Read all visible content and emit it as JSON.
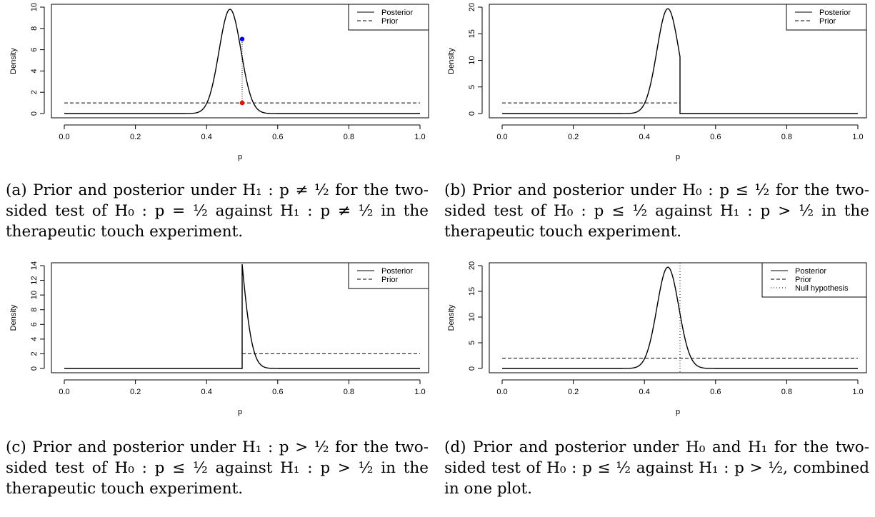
{
  "chart_data": [
    {
      "type": "line",
      "xlabel": "p",
      "ylabel": "Density",
      "xlim": [
        0,
        1
      ],
      "ylim": [
        0,
        10
      ],
      "xticks": [
        "0.0",
        "0.2",
        "0.4",
        "0.6",
        "0.8",
        "1.0"
      ],
      "yticks": [
        "0",
        "2",
        "4",
        "6",
        "8",
        "10"
      ],
      "legend": {
        "placement": "top-right",
        "entries": [
          "Posterior",
          "Prior"
        ]
      },
      "series": [
        {
          "name": "Posterior",
          "style": "solid",
          "kind": "beta",
          "alpha": 124,
          "beta": 142,
          "x_range": [
            0,
            1
          ],
          "peak": 9.8,
          "peak_x": 0.466
        },
        {
          "name": "Prior",
          "style": "dashed",
          "kind": "constant",
          "value": 1,
          "x_range": [
            0,
            1
          ]
        }
      ],
      "markers": [
        {
          "x": 0.5,
          "y": 7.0,
          "color": "#0000ff"
        },
        {
          "x": 0.5,
          "y": 1.0,
          "color": "#ff0000"
        }
      ],
      "vline": {
        "x": 0.5,
        "y_range": [
          1.0,
          7.0
        ],
        "style": "dotted"
      },
      "caption": "(a) Prior and posterior under H₁ : p ≠ ½ for the two-sided test of H₀ : p = ½ against H₁ : p ≠ ½ in the therapeutic touch experiment."
    },
    {
      "type": "line",
      "xlabel": "p",
      "ylabel": "Density",
      "xlim": [
        0,
        1
      ],
      "ylim": [
        0,
        20
      ],
      "xticks": [
        "0.0",
        "0.2",
        "0.4",
        "0.6",
        "0.8",
        "1.0"
      ],
      "yticks": [
        "0",
        "5",
        "10",
        "15",
        "20"
      ],
      "legend": {
        "placement": "top-right",
        "entries": [
          "Posterior",
          "Prior"
        ]
      },
      "series": [
        {
          "name": "Posterior",
          "style": "solid",
          "kind": "beta",
          "alpha": 124,
          "beta": 142,
          "x_range": [
            0,
            0.5
          ],
          "peak": 19.7,
          "peak_x": 0.466,
          "zero_after": true
        },
        {
          "name": "Prior",
          "style": "dashed",
          "kind": "constant",
          "value": 2,
          "x_range": [
            0,
            0.5
          ]
        }
      ],
      "caption": "(b) Prior and posterior under H₀ : p ≤ ½ for the two-sided test of H₀ : p ≤ ½ against H₁ : p > ½ in the therapeutic touch experiment."
    },
    {
      "type": "line",
      "xlabel": "p",
      "ylabel": "Density",
      "xlim": [
        0,
        1
      ],
      "ylim": [
        0,
        14
      ],
      "xticks": [
        "0.0",
        "0.2",
        "0.4",
        "0.6",
        "0.8",
        "1.0"
      ],
      "yticks": [
        "0",
        "2",
        "4",
        "6",
        "8",
        "10",
        "12",
        "14"
      ],
      "legend": {
        "placement": "top-right",
        "entries": [
          "Posterior",
          "Prior"
        ]
      },
      "series": [
        {
          "name": "Posterior",
          "style": "solid",
          "kind": "beta",
          "alpha": 124,
          "beta": 142,
          "x_range": [
            0.5,
            1
          ],
          "peak": 14.2,
          "peak_x": 0.5,
          "zero_before": true
        },
        {
          "name": "Prior",
          "style": "dashed",
          "kind": "constant",
          "value": 2,
          "x_range": [
            0.5,
            1
          ]
        }
      ],
      "caption": "(c) Prior and posterior under H₁ : p > ½ for the two-sided test of H₀ : p ≤ ½ against H₁ : p > ½ in the therapeutic touch experiment."
    },
    {
      "type": "line",
      "xlabel": "p",
      "ylabel": "Density",
      "xlim": [
        0,
        1
      ],
      "ylim": [
        0,
        20
      ],
      "xticks": [
        "0.0",
        "0.2",
        "0.4",
        "0.6",
        "0.8",
        "1.0"
      ],
      "yticks": [
        "0",
        "5",
        "10",
        "15",
        "20"
      ],
      "legend": {
        "placement": "top-right",
        "entries": [
          "Posterior",
          "Prior",
          "Null hypothesis"
        ]
      },
      "series": [
        {
          "name": "Posterior",
          "style": "solid",
          "kind": "beta",
          "alpha": 124,
          "beta": 142,
          "x_range": [
            0,
            1
          ],
          "peak": 19.7,
          "peak_x": 0.466
        },
        {
          "name": "Prior",
          "style": "dashed",
          "kind": "constant",
          "value": 2,
          "x_range": [
            0,
            1
          ]
        },
        {
          "name": "Null hypothesis",
          "style": "dotted",
          "kind": "vline",
          "x": 0.5
        }
      ],
      "caption": "(d) Prior and posterior under H₀ and H₁ for the two-sided test of H₀ : p ≤ ½ against H₁ : p > ½, combined in one plot."
    }
  ]
}
